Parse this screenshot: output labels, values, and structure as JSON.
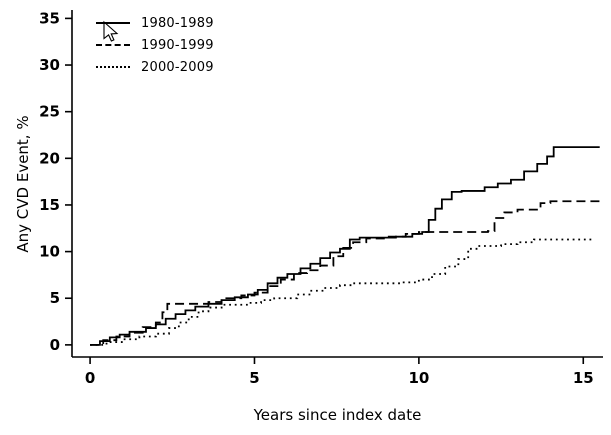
{
  "figure": {
    "background": "#ffffff",
    "line_color": "#000000"
  },
  "chart_data": {
    "type": "line",
    "subtype": "step",
    "title": "",
    "xlabel": "Years since index date",
    "ylabel": "Any CVD Event, %",
    "xlim": [
      0,
      15.5
    ],
    "ylim": [
      0,
      35
    ],
    "xticks": [
      0,
      5,
      10,
      15
    ],
    "yticks": [
      0,
      5,
      10,
      15,
      20,
      25,
      30,
      35
    ],
    "grid": false,
    "legend_position": "top-left",
    "series": [
      {
        "name": "1980-1989",
        "style": "solid",
        "points": [
          [
            0,
            0
          ],
          [
            0.3,
            0.4
          ],
          [
            0.6,
            0.8
          ],
          [
            0.9,
            1.1
          ],
          [
            1.2,
            1.4
          ],
          [
            1.7,
            1.8
          ],
          [
            2.0,
            2.2
          ],
          [
            2.3,
            2.8
          ],
          [
            2.6,
            3.3
          ],
          [
            2.9,
            3.7
          ],
          [
            3.2,
            4.1
          ],
          [
            3.6,
            4.4
          ],
          [
            4.0,
            4.8
          ],
          [
            4.4,
            5.1
          ],
          [
            4.8,
            5.4
          ],
          [
            5.1,
            5.9
          ],
          [
            5.4,
            6.6
          ],
          [
            5.7,
            7.2
          ],
          [
            6.0,
            7.6
          ],
          [
            6.4,
            8.2
          ],
          [
            6.7,
            8.7
          ],
          [
            7.0,
            9.3
          ],
          [
            7.3,
            9.9
          ],
          [
            7.6,
            10.3
          ],
          [
            7.9,
            11.3
          ],
          [
            8.2,
            11.5
          ],
          [
            9.3,
            11.6
          ],
          [
            9.8,
            11.9
          ],
          [
            10.1,
            12.1
          ],
          [
            10.3,
            13.4
          ],
          [
            10.5,
            14.6
          ],
          [
            10.7,
            15.6
          ],
          [
            11.0,
            16.4
          ],
          [
            11.3,
            16.5
          ],
          [
            12.0,
            16.9
          ],
          [
            12.4,
            17.3
          ],
          [
            12.8,
            17.7
          ],
          [
            13.2,
            18.6
          ],
          [
            13.6,
            19.4
          ],
          [
            13.9,
            20.2
          ],
          [
            14.1,
            21.2
          ],
          [
            15.5,
            21.2
          ]
        ]
      },
      {
        "name": "1990-1999",
        "style": "dashed",
        "points": [
          [
            0,
            0
          ],
          [
            0.4,
            0.5
          ],
          [
            0.8,
            0.9
          ],
          [
            1.2,
            1.3
          ],
          [
            1.6,
            1.9
          ],
          [
            2.0,
            2.4
          ],
          [
            2.2,
            3.5
          ],
          [
            2.35,
            4.4
          ],
          [
            3.6,
            4.6
          ],
          [
            4.0,
            5.0
          ],
          [
            4.6,
            5.3
          ],
          [
            5.0,
            5.6
          ],
          [
            5.4,
            6.3
          ],
          [
            5.8,
            7.0
          ],
          [
            6.2,
            7.7
          ],
          [
            6.6,
            8.0
          ],
          [
            7.0,
            8.5
          ],
          [
            7.4,
            9.5
          ],
          [
            7.7,
            10.4
          ],
          [
            8.0,
            11.0
          ],
          [
            8.4,
            11.4
          ],
          [
            9.0,
            11.6
          ],
          [
            9.6,
            11.9
          ],
          [
            10.0,
            12.1
          ],
          [
            12.1,
            12.2
          ],
          [
            12.3,
            13.6
          ],
          [
            12.6,
            14.2
          ],
          [
            13.0,
            14.5
          ],
          [
            13.7,
            15.2
          ],
          [
            14.0,
            15.4
          ],
          [
            15.5,
            15.4
          ]
        ]
      },
      {
        "name": "2000-2009",
        "style": "dotted",
        "points": [
          [
            0,
            0
          ],
          [
            0.5,
            0.3
          ],
          [
            1.0,
            0.6
          ],
          [
            1.5,
            0.9
          ],
          [
            2.0,
            1.2
          ],
          [
            2.4,
            1.8
          ],
          [
            2.7,
            2.4
          ],
          [
            3.0,
            3.0
          ],
          [
            3.3,
            3.6
          ],
          [
            3.6,
            4.0
          ],
          [
            4.0,
            4.3
          ],
          [
            4.8,
            4.5
          ],
          [
            5.2,
            4.8
          ],
          [
            5.6,
            5.0
          ],
          [
            6.3,
            5.4
          ],
          [
            6.7,
            5.8
          ],
          [
            7.1,
            6.1
          ],
          [
            7.6,
            6.4
          ],
          [
            8.0,
            6.6
          ],
          [
            9.5,
            6.7
          ],
          [
            10.0,
            7.0
          ],
          [
            10.4,
            7.6
          ],
          [
            10.8,
            8.4
          ],
          [
            11.2,
            9.2
          ],
          [
            11.5,
            10.3
          ],
          [
            11.8,
            10.6
          ],
          [
            12.5,
            10.8
          ],
          [
            13.0,
            11.0
          ],
          [
            13.5,
            11.3
          ],
          [
            15.3,
            11.3
          ]
        ]
      }
    ]
  }
}
